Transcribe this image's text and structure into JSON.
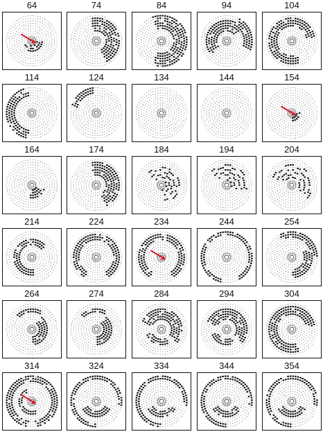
{
  "figure": {
    "panels": [
      {
        "label": "64",
        "pattern": "center-blob",
        "arrow": true
      },
      {
        "label": "74",
        "pattern": "half-arc-right",
        "arrow": false
      },
      {
        "label": "84",
        "pattern": "broad-arc-right",
        "arrow": false
      },
      {
        "label": "94",
        "pattern": "thick-arc-upper-left",
        "arrow": false
      },
      {
        "label": "104",
        "pattern": "ring-partial",
        "arrow": false
      },
      {
        "label": "114",
        "pattern": "arc-left-thick",
        "arrow": false
      },
      {
        "label": "124",
        "pattern": "small-arc-upper-left",
        "arrow": false
      },
      {
        "label": "134",
        "pattern": "faint",
        "arrow": false
      },
      {
        "label": "144",
        "pattern": "faint",
        "arrow": false
      },
      {
        "label": "154",
        "pattern": "center-small",
        "arrow": true
      },
      {
        "label": "164",
        "pattern": "lower-right-blob",
        "arrow": false
      },
      {
        "label": "174",
        "pattern": "half-arc-right",
        "arrow": false
      },
      {
        "label": "184",
        "pattern": "checker-center",
        "arrow": false
      },
      {
        "label": "194",
        "pattern": "checker-right",
        "arrow": false
      },
      {
        "label": "204",
        "pattern": "checker-upper",
        "arrow": false
      },
      {
        "label": "214",
        "pattern": "ring-left",
        "arrow": false
      },
      {
        "label": "224",
        "pattern": "ring-wide",
        "arrow": false
      },
      {
        "label": "234",
        "pattern": "ring-wide",
        "arrow": true
      },
      {
        "label": "244",
        "pattern": "outer-ring",
        "arrow": false
      },
      {
        "label": "254",
        "pattern": "lower-right-arc",
        "arrow": false
      },
      {
        "label": "264",
        "pattern": "inner-cluster",
        "arrow": false
      },
      {
        "label": "274",
        "pattern": "inner-cluster",
        "arrow": false
      },
      {
        "label": "284",
        "pattern": "ring-upper-arc",
        "arrow": false
      },
      {
        "label": "294",
        "pattern": "ring-upper-arc",
        "arrow": false
      },
      {
        "label": "304",
        "pattern": "ring-partial",
        "arrow": false
      },
      {
        "label": "314",
        "pattern": "double-ring",
        "arrow": true
      },
      {
        "label": "324",
        "pattern": "outer-ring-loop",
        "arrow": false
      },
      {
        "label": "334",
        "pattern": "outer-ring-loop",
        "arrow": false
      },
      {
        "label": "344",
        "pattern": "outer-ring-loop",
        "arrow": false
      },
      {
        "label": "354",
        "pattern": "outer-ring-loop",
        "arrow": false
      }
    ],
    "colors": {
      "ink": "#111111",
      "arrow": "#d21a2a",
      "border": "#111111",
      "background": "#ffffff"
    }
  }
}
